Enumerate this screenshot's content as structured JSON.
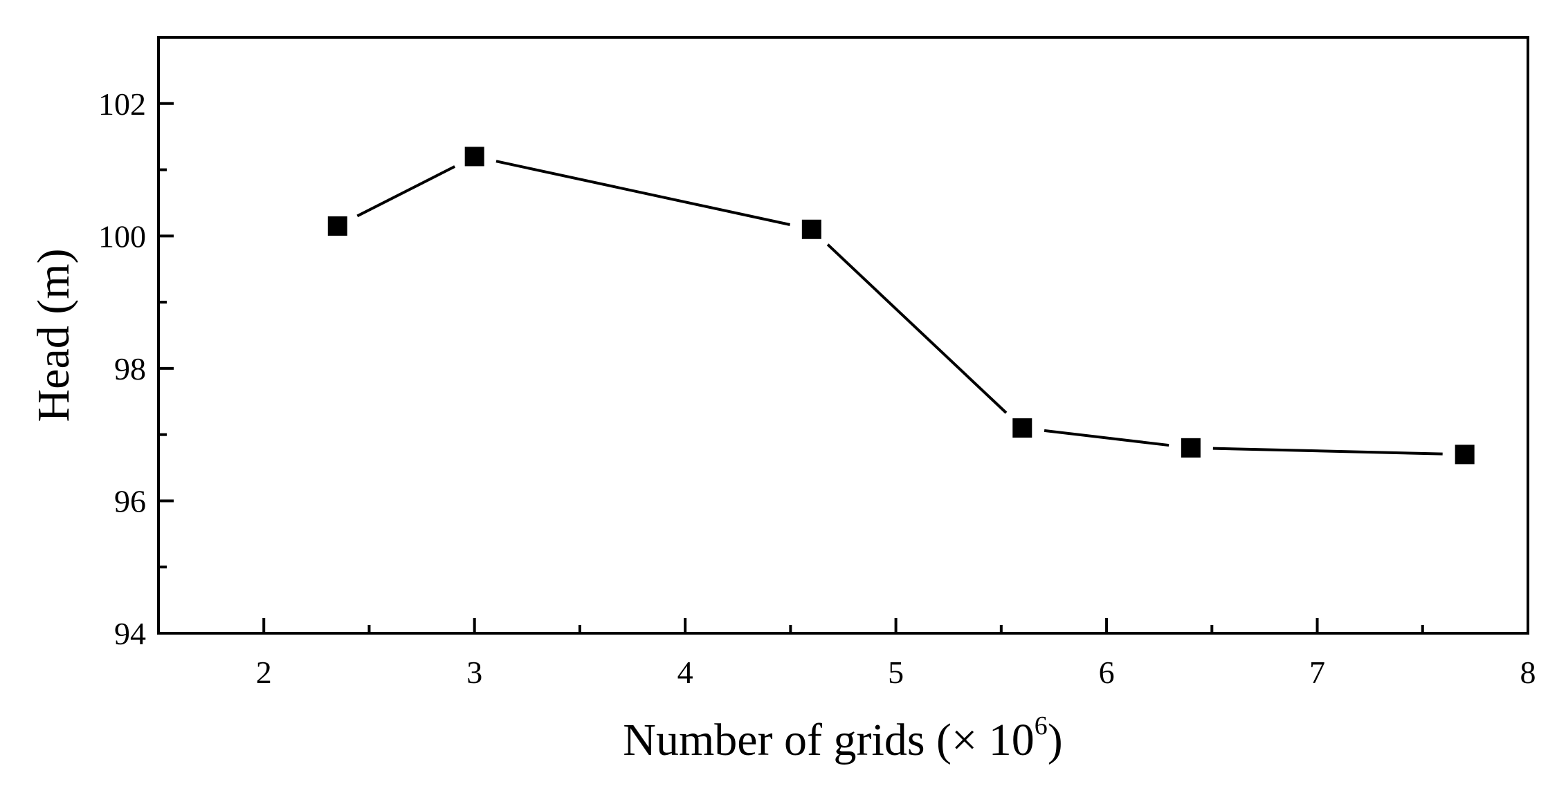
{
  "chart_data": {
    "type": "line",
    "xlabel": "Number of grids (× 10",
    "xlabel_exponent": "6",
    "xlabel_close": ")",
    "ylabel": "Head (m)",
    "xlim": [
      1.5,
      8
    ],
    "ylim": [
      94,
      103
    ],
    "xticks": [
      2,
      3,
      4,
      5,
      6,
      7,
      8
    ],
    "xtick_labels": [
      "2",
      "3",
      "4",
      "5",
      "6",
      "7",
      "8"
    ],
    "xminor": [
      2.5,
      3.5,
      4.5,
      5.5,
      6.5,
      7.5
    ],
    "yticks": [
      94,
      96,
      98,
      100,
      102
    ],
    "ytick_labels": [
      "94",
      "96",
      "98",
      "100",
      "102"
    ],
    "yminor": [
      95,
      97,
      99,
      101
    ],
    "grid": false,
    "marker": "square",
    "color": "#000000",
    "series": [
      {
        "x": [
          2.35,
          3.0,
          4.6,
          5.6,
          6.4,
          7.7
        ],
        "y": [
          100.15,
          101.2,
          100.1,
          97.1,
          96.8,
          96.7
        ]
      }
    ]
  }
}
